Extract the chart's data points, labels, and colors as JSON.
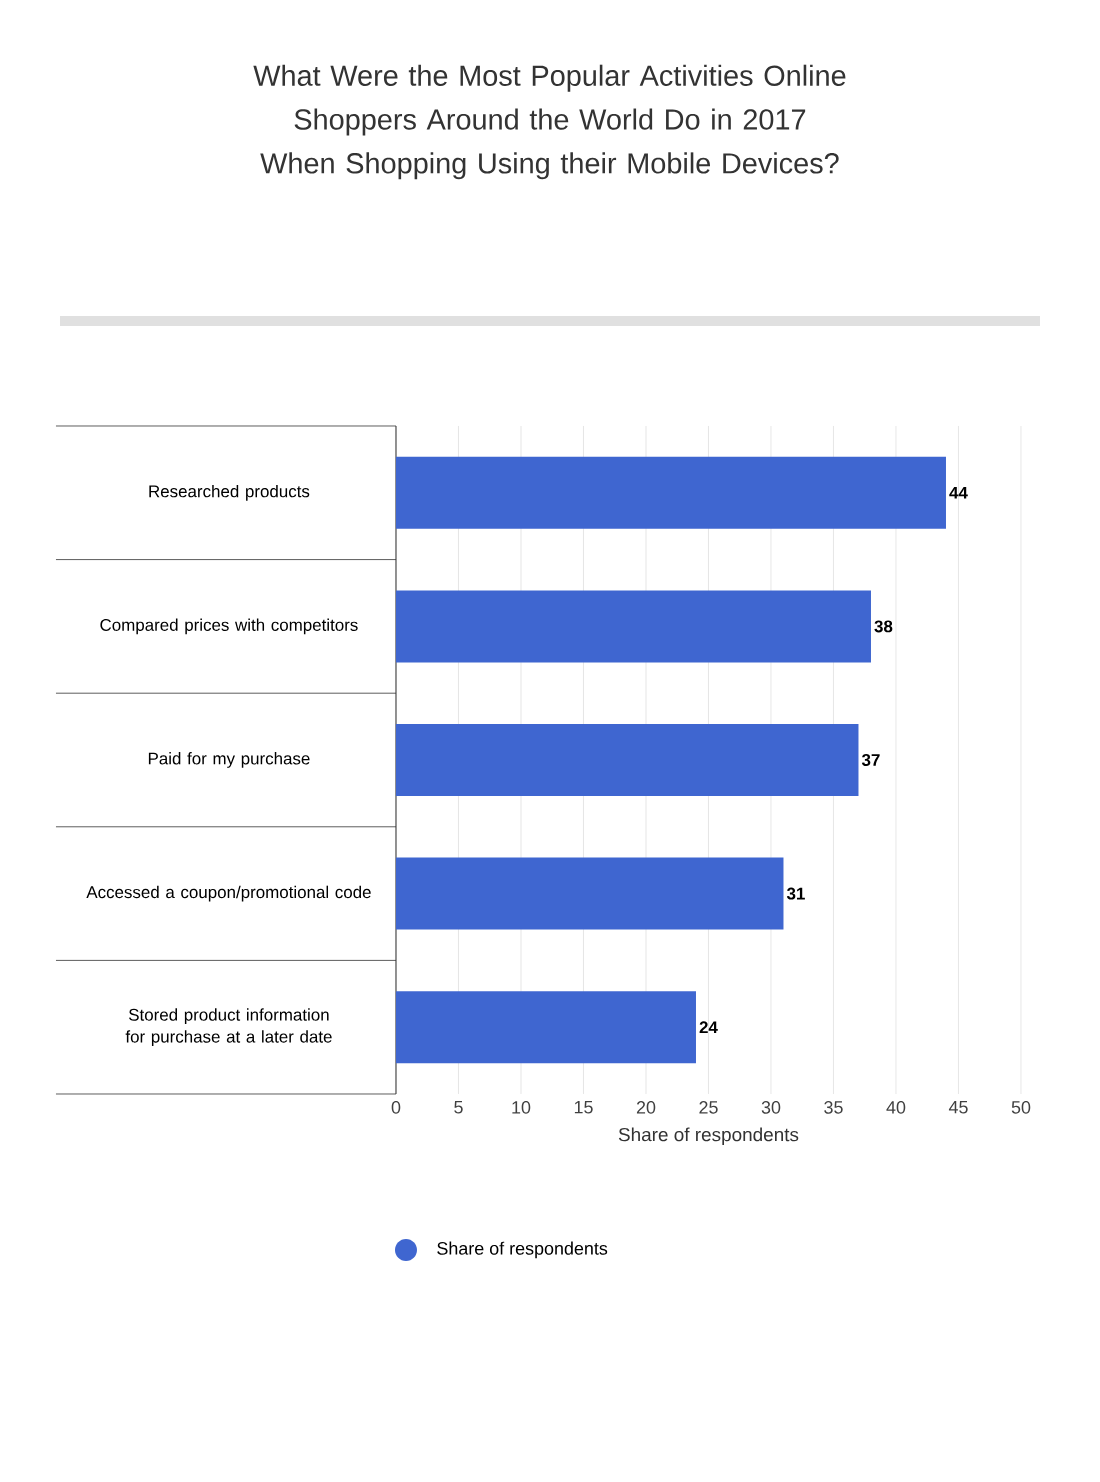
{
  "chart_data": {
    "type": "bar",
    "orientation": "horizontal",
    "title": "What Were the Most Popular Activities Online Shoppers Around the World Do in 2017 When Shopping Using their Mobile Devices?",
    "categories": [
      "Researched products",
      "Compared prices with competitors",
      "Paid for my purchase",
      "Accessed a coupon/promotional code",
      "Stored product information for purchase at a later date"
    ],
    "series": [
      {
        "name": "Share of respondents",
        "color": "#3f66d0",
        "values": [
          44,
          38,
          37,
          31,
          24
        ]
      }
    ],
    "xlabel": "Share of respondents",
    "xlim": [
      0,
      50
    ],
    "xticks": [
      0,
      5,
      10,
      15,
      20,
      25,
      30,
      35,
      40,
      45,
      50
    ],
    "grid": "x",
    "data_labels": true,
    "legend": "bottom",
    "marker": "circle"
  }
}
